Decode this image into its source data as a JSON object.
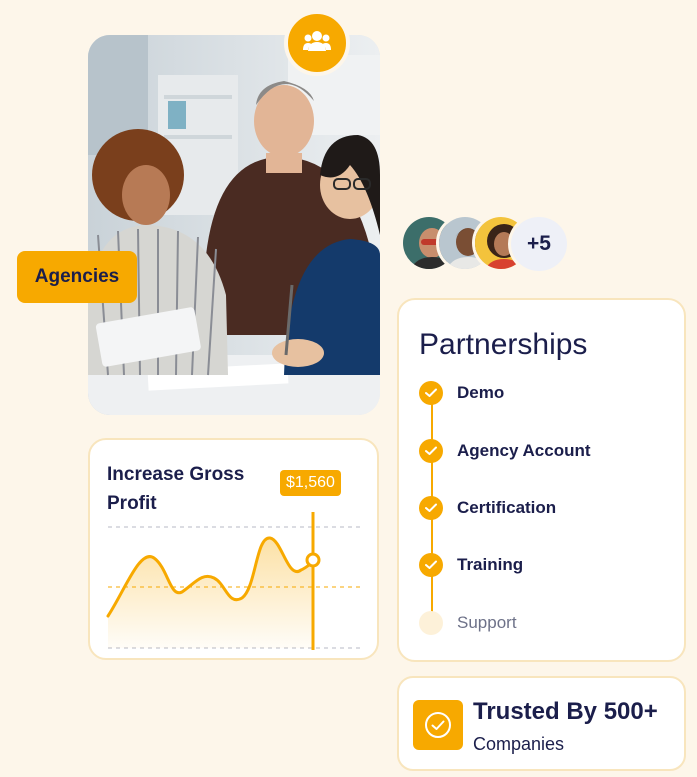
{
  "hero": {
    "tag": "Agencies",
    "badge_icon": "people-icon"
  },
  "avatars": {
    "extra_count": "+5"
  },
  "partnerships": {
    "title": "Partnerships",
    "steps": [
      {
        "label": "Demo",
        "done": true
      },
      {
        "label": "Agency Account",
        "done": true
      },
      {
        "label": "Certification",
        "done": true
      },
      {
        "label": "Training",
        "done": true
      },
      {
        "label": "Support",
        "done": false
      }
    ]
  },
  "trusted": {
    "title": "Trusted By 500+",
    "subtitle": "Companies"
  },
  "profit": {
    "title": "Increase Gross Profit",
    "price": "$1,560"
  },
  "colors": {
    "accent": "#f7a900",
    "navy": "#1b1e4b",
    "background": "#fdf6ea"
  }
}
